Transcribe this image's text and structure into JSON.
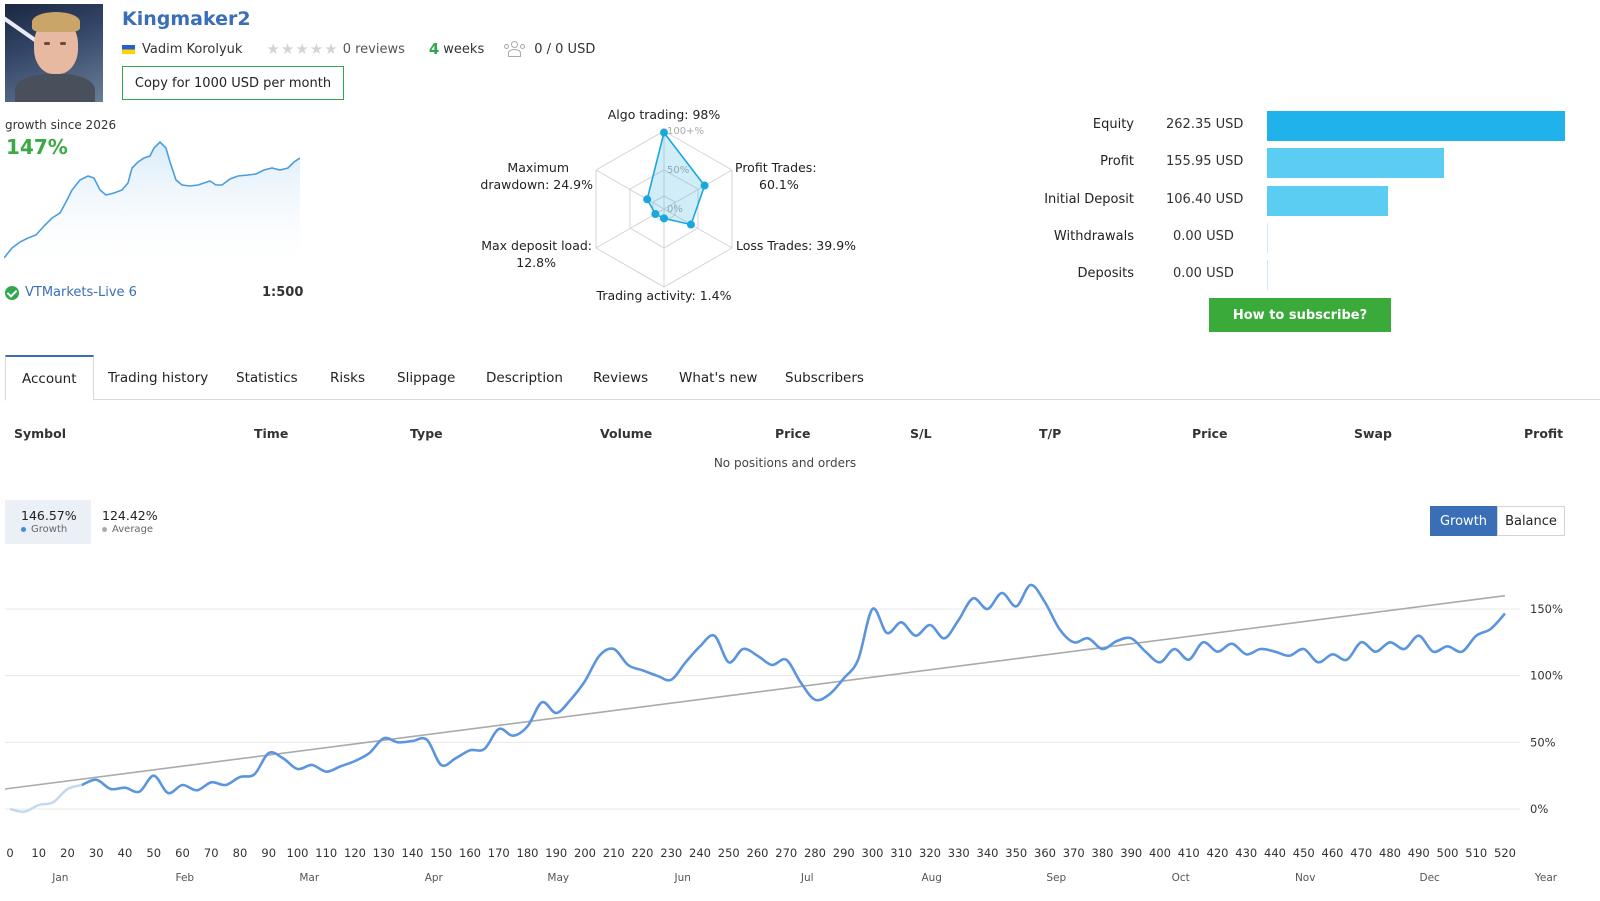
{
  "header": {
    "title": "Kingmaker2",
    "author": "Vadim Korolyuk",
    "reviews": "0 reviews",
    "weeks_num": "4",
    "weeks_label": "weeks",
    "subscribers": "0 / 0 USD",
    "copy_button": "Copy for 1000 USD per month",
    "rating_stars": 0
  },
  "summary": {
    "growth_since": "growth since 2026",
    "growth_value": "147%",
    "broker": "VTMarkets-Live 6",
    "leverage": "1:500"
  },
  "radar": {
    "algo": "Algo trading: 98%",
    "profit_trades_1": "Profit Trades:",
    "profit_trades_2": "60.1%",
    "loss_trades": "Loss Trades: 39.9%",
    "activity": "Trading activity: 1.4%",
    "deposit_load_1": "Max deposit load:",
    "deposit_load_2": "12.8%",
    "drawdown_1": "Maximum",
    "drawdown_2": "drawdown: 24.9%",
    "ring_100": "100+%",
    "ring_50": "50%",
    "ring_0": "0%",
    "values": [
      98,
      60.1,
      39.9,
      1.4,
      12.8,
      24.9
    ],
    "color": "#1aa7dd"
  },
  "equity": {
    "rows": [
      {
        "label": "Equity",
        "value": "262.35 USD",
        "amount": 262.35,
        "color": "#1fb2eb"
      },
      {
        "label": "Profit",
        "value": "155.95 USD",
        "amount": 155.95,
        "color": "#5ccdf2"
      },
      {
        "label": "Initial Deposit",
        "value": "106.40 USD",
        "amount": 106.4,
        "color": "#5ccdf2"
      },
      {
        "label": "Withdrawals",
        "value": "0.00 USD",
        "amount": 0,
        "color": "#5ccdf2"
      },
      {
        "label": "Deposits",
        "value": "0.00 USD",
        "amount": 0,
        "color": "#5ccdf2"
      }
    ],
    "subscribe_button": "How to subscribe?"
  },
  "tabs": [
    "Account",
    "Trading history",
    "Statistics",
    "Risks",
    "Slippage",
    "Description",
    "Reviews",
    "What's new",
    "Subscribers"
  ],
  "positions": {
    "columns": [
      "Symbol",
      "Time",
      "Type",
      "Volume",
      "Price",
      "S/L",
      "T/P",
      "Price",
      "Swap",
      "Profit"
    ],
    "empty_text": "No positions and orders"
  },
  "chart_header": {
    "growth_value": "146.57%",
    "growth_label": "Growth",
    "average_value": "124.42%",
    "average_label": "Average",
    "toggle_growth": "Growth",
    "toggle_balance": "Balance"
  },
  "chart_data": {
    "type": "line",
    "ylabels": [
      "150%",
      "100%",
      "50%",
      "0%"
    ],
    "y_ticks": [
      150,
      100,
      50,
      0
    ],
    "x_ticks": [
      0,
      10,
      20,
      30,
      40,
      50,
      60,
      70,
      80,
      90,
      100,
      110,
      120,
      130,
      140,
      150,
      160,
      170,
      180,
      190,
      200,
      210,
      220,
      230,
      240,
      250,
      260,
      270,
      280,
      290,
      300,
      310,
      320,
      330,
      340,
      350,
      360,
      370,
      380,
      390,
      400,
      410,
      420,
      430,
      440,
      450,
      460,
      470,
      480,
      490,
      500,
      510,
      520
    ],
    "months": [
      "Jan",
      "Feb",
      "Mar",
      "Apr",
      "May",
      "Jun",
      "Jul",
      "Aug",
      "Sep",
      "Oct",
      "Nov",
      "Dec"
    ],
    "x_end_label": "Year",
    "series": [
      {
        "name": "Growth",
        "color": "#5b95de",
        "points": [
          [
            0,
            0
          ],
          [
            5,
            -2
          ],
          [
            10,
            3
          ],
          [
            15,
            5
          ],
          [
            20,
            15
          ],
          [
            25,
            18
          ],
          [
            30,
            22
          ],
          [
            35,
            15
          ],
          [
            40,
            16
          ],
          [
            45,
            13
          ],
          [
            50,
            25
          ],
          [
            55,
            12
          ],
          [
            60,
            18
          ],
          [
            65,
            14
          ],
          [
            70,
            20
          ],
          [
            75,
            18
          ],
          [
            80,
            24
          ],
          [
            85,
            26
          ],
          [
            90,
            42
          ],
          [
            95,
            38
          ],
          [
            100,
            30
          ],
          [
            105,
            33
          ],
          [
            110,
            28
          ],
          [
            115,
            32
          ],
          [
            120,
            36
          ],
          [
            125,
            42
          ],
          [
            130,
            53
          ],
          [
            135,
            50
          ],
          [
            140,
            51
          ],
          [
            145,
            52
          ],
          [
            150,
            33
          ],
          [
            155,
            38
          ],
          [
            160,
            44
          ],
          [
            165,
            45
          ],
          [
            170,
            60
          ],
          [
            175,
            55
          ],
          [
            180,
            62
          ],
          [
            185,
            80
          ],
          [
            190,
            72
          ],
          [
            195,
            82
          ],
          [
            200,
            96
          ],
          [
            205,
            115
          ],
          [
            210,
            120
          ],
          [
            215,
            108
          ],
          [
            220,
            104
          ],
          [
            225,
            100
          ],
          [
            230,
            97
          ],
          [
            235,
            110
          ],
          [
            240,
            122
          ],
          [
            245,
            130
          ],
          [
            250,
            110
          ],
          [
            255,
            120
          ],
          [
            260,
            115
          ],
          [
            265,
            108
          ],
          [
            270,
            112
          ],
          [
            275,
            95
          ],
          [
            280,
            82
          ],
          [
            285,
            86
          ],
          [
            290,
            98
          ],
          [
            295,
            112
          ],
          [
            300,
            150
          ],
          [
            305,
            132
          ],
          [
            310,
            140
          ],
          [
            315,
            130
          ],
          [
            320,
            138
          ],
          [
            325,
            128
          ],
          [
            330,
            142
          ],
          [
            335,
            158
          ],
          [
            340,
            150
          ],
          [
            345,
            162
          ],
          [
            350,
            152
          ],
          [
            355,
            168
          ],
          [
            360,
            155
          ],
          [
            365,
            135
          ],
          [
            370,
            125
          ],
          [
            375,
            128
          ],
          [
            380,
            120
          ],
          [
            385,
            126
          ],
          [
            390,
            128
          ],
          [
            395,
            118
          ],
          [
            400,
            110
          ],
          [
            405,
            120
          ],
          [
            410,
            112
          ],
          [
            415,
            125
          ],
          [
            420,
            118
          ],
          [
            425,
            124
          ],
          [
            430,
            116
          ],
          [
            435,
            120
          ],
          [
            440,
            118
          ],
          [
            445,
            115
          ],
          [
            450,
            120
          ],
          [
            455,
            110
          ],
          [
            460,
            116
          ],
          [
            465,
            112
          ],
          [
            470,
            125
          ],
          [
            475,
            118
          ],
          [
            480,
            125
          ],
          [
            485,
            120
          ],
          [
            490,
            130
          ],
          [
            495,
            118
          ],
          [
            500,
            122
          ],
          [
            505,
            118
          ],
          [
            510,
            130
          ],
          [
            515,
            135
          ],
          [
            520,
            146.6
          ]
        ]
      },
      {
        "name": "Average",
        "color": "#aaaaaa",
        "points": [
          [
            0,
            15
          ],
          [
            520,
            160
          ]
        ]
      }
    ]
  }
}
